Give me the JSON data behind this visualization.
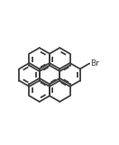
{
  "bg_color": "#ffffff",
  "line_color": "#404040",
  "line_width": 1.3,
  "text_color": "#404040",
  "br_label": "Br",
  "br_fontsize": 6.5,
  "figsize": [
    1.32,
    1.61
  ],
  "dpi": 100
}
